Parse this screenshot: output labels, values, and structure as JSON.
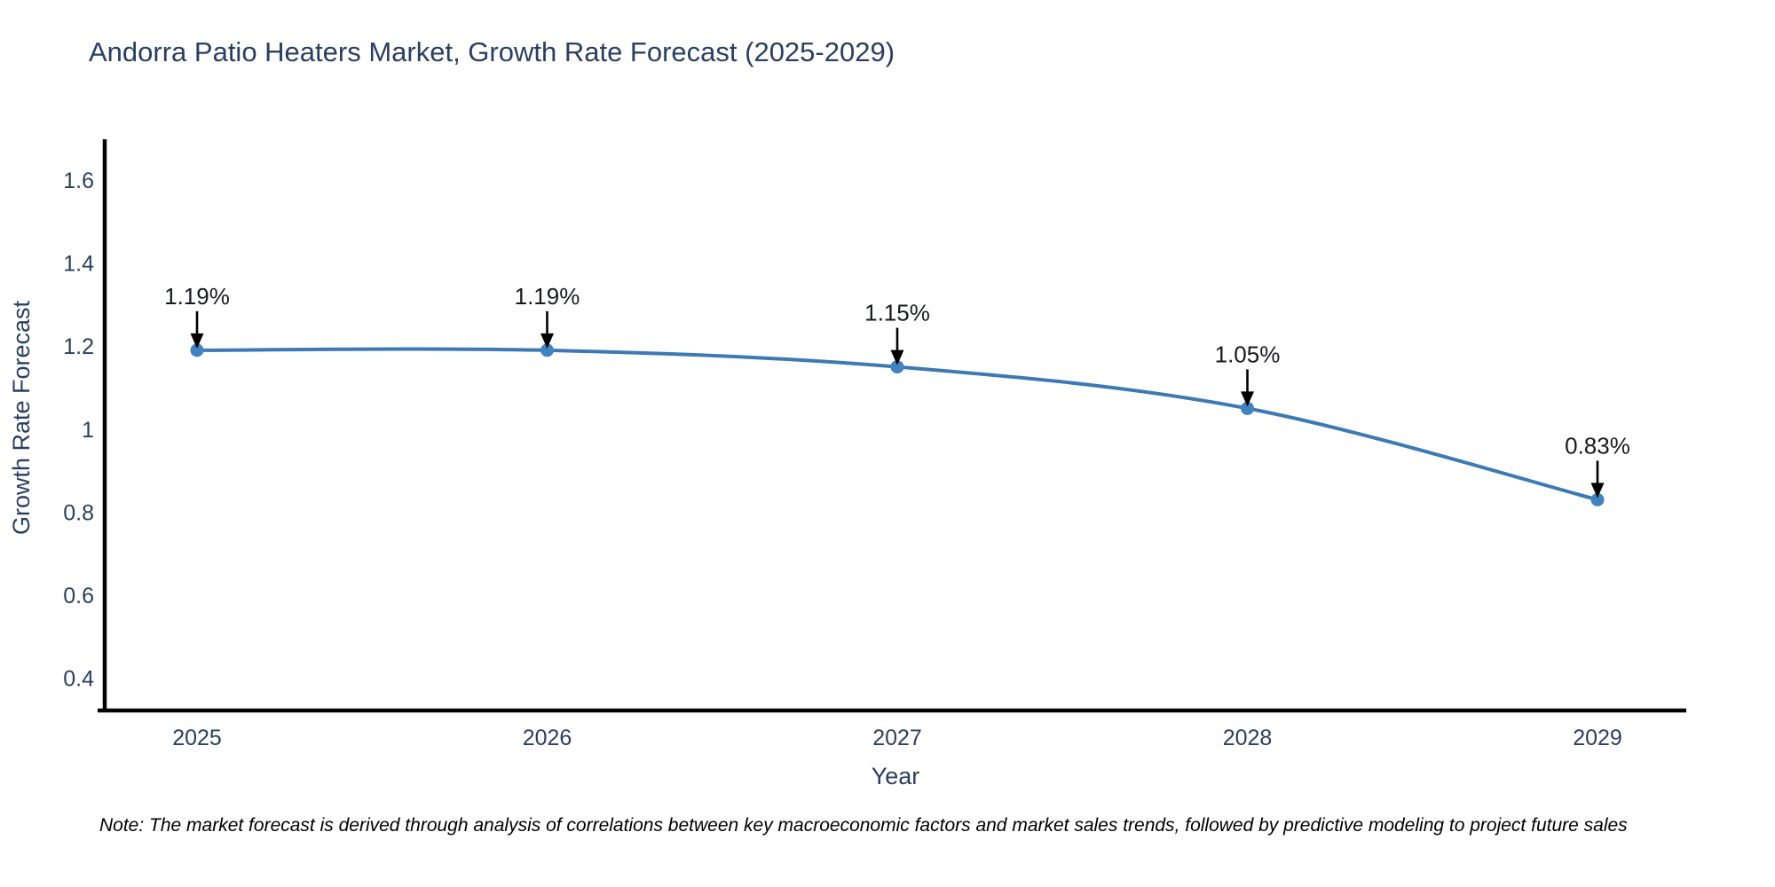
{
  "chart_data": {
    "type": "line",
    "title": "Andorra Patio Heaters Market, Growth Rate Forecast (2025-2029)",
    "xlabel": "Year",
    "ylabel": "Growth Rate Forecast",
    "x": [
      2025,
      2026,
      2027,
      2028,
      2029
    ],
    "series": [
      {
        "name": "Growth Rate Forecast",
        "values": [
          1.19,
          1.19,
          1.15,
          1.05,
          0.83
        ]
      }
    ],
    "point_labels": [
      "1.19%",
      "1.19%",
      "1.15%",
      "1.05%",
      "0.83%"
    ],
    "yticks": [
      1.6,
      1.4,
      1.2,
      1,
      0.8,
      0.6,
      0.4
    ],
    "ylim": [
      0.32,
      1.7
    ],
    "line_shape": "spline",
    "grid": false,
    "legend": "none",
    "note": "Note: The market forecast is derived through analysis of correlations between key macroeconomic factors and market sales trends, followed by predictive modeling to project future sales",
    "colors": {
      "line": "#3d79b3",
      "marker": "#4282c0",
      "axis": "#000000",
      "tick_text": "#2a3f5f",
      "annotation_text": "#17191c",
      "arrow": "#000000"
    }
  }
}
